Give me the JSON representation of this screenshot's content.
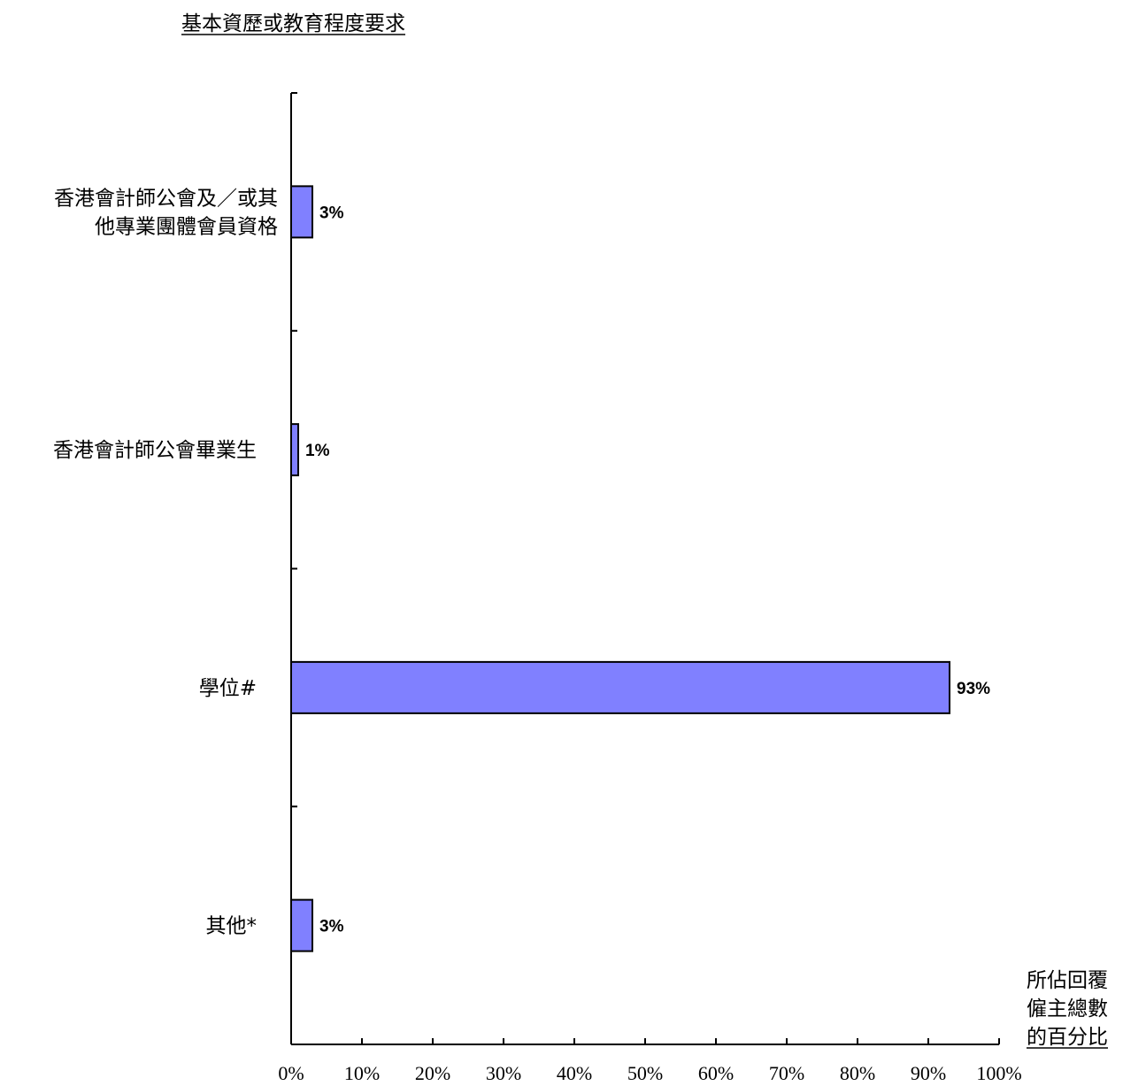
{
  "chart_data": {
    "type": "bar",
    "orientation": "horizontal",
    "title": "基本資歷或教育程度要求",
    "categories": [
      [
        "香港會計師公會及／或其",
        "他專業團體會員資格"
      ],
      [
        "香港會計師公會畢業生"
      ],
      [
        "學位#"
      ],
      [
        "其他*"
      ]
    ],
    "values": [
      3,
      1,
      93,
      3
    ],
    "data_labels": [
      "3%",
      "1%",
      "93%",
      "3%"
    ],
    "xlabel": [
      "所佔回覆",
      "僱主總數",
      "的百分比"
    ],
    "ylabel": "",
    "xlim": [
      0,
      100
    ],
    "x_ticks": [
      "0%",
      "10%",
      "20%",
      "30%",
      "40%",
      "50%",
      "60%",
      "70%",
      "80%",
      "90%",
      "100%"
    ],
    "grid": false,
    "legend": "none",
    "colors": {
      "bar_fill": "#8080FF",
      "bar_stroke": "#000000",
      "axis": "#000000"
    }
  }
}
